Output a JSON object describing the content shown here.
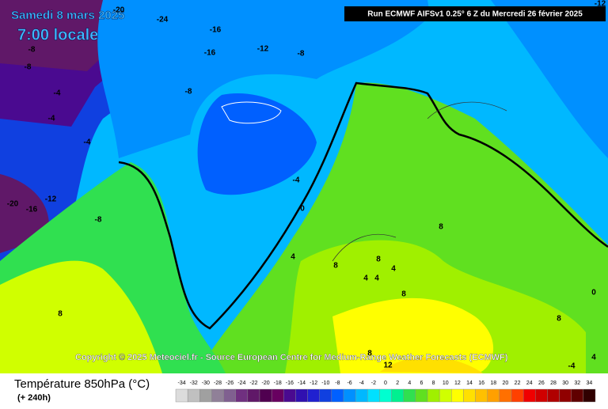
{
  "header": {
    "date": "Samedi 8 mars 2025",
    "time": "7:00 locale",
    "run": "Run ECMWF AIFSv1 0.25° 6 Z du Mercredi 26 février 2025"
  },
  "copyright": "Copyright © 2025 Meteociel.fr - Source European Centre for Medium-Range Weather Forecasts (ECMWF)",
  "legend": {
    "title": "Température 850hPa (°C)",
    "lead": "(+ 240h)",
    "ticks": [
      -34,
      -32,
      -30,
      -28,
      -26,
      -24,
      -22,
      -20,
      -18,
      -16,
      -14,
      -12,
      -10,
      -8,
      -6,
      -4,
      -2,
      0,
      2,
      4,
      6,
      8,
      10,
      12,
      14,
      16,
      18,
      20,
      22,
      24,
      26,
      28,
      30,
      32,
      34
    ],
    "colors": [
      "#dcdcdc",
      "#c0c0c0",
      "#a0a0a0",
      "#908098",
      "#806090",
      "#703080",
      "#601868",
      "#500050",
      "#680060",
      "#4a0a90",
      "#3010b0",
      "#2020d0",
      "#1040e0",
      "#0060ff",
      "#0090ff",
      "#00b8ff",
      "#00e0ff",
      "#00ffd0",
      "#00f090",
      "#30e050",
      "#60e020",
      "#a0f000",
      "#d0ff00",
      "#ffff00",
      "#ffe000",
      "#ffc000",
      "#ffa000",
      "#ff7000",
      "#ff4000",
      "#f00000",
      "#d00000",
      "#b00000",
      "#900000",
      "#600000",
      "#300000"
    ]
  },
  "contour_labels": [
    -20,
    -24,
    -16,
    -16,
    -12,
    -8,
    -8,
    -8,
    -4,
    -4,
    -8,
    -4,
    -4,
    0,
    4,
    -20,
    -16,
    -12,
    -8,
    8,
    8,
    8,
    8,
    4,
    4,
    4,
    8,
    0,
    8,
    8,
    12,
    -4,
    4,
    -12
  ]
}
